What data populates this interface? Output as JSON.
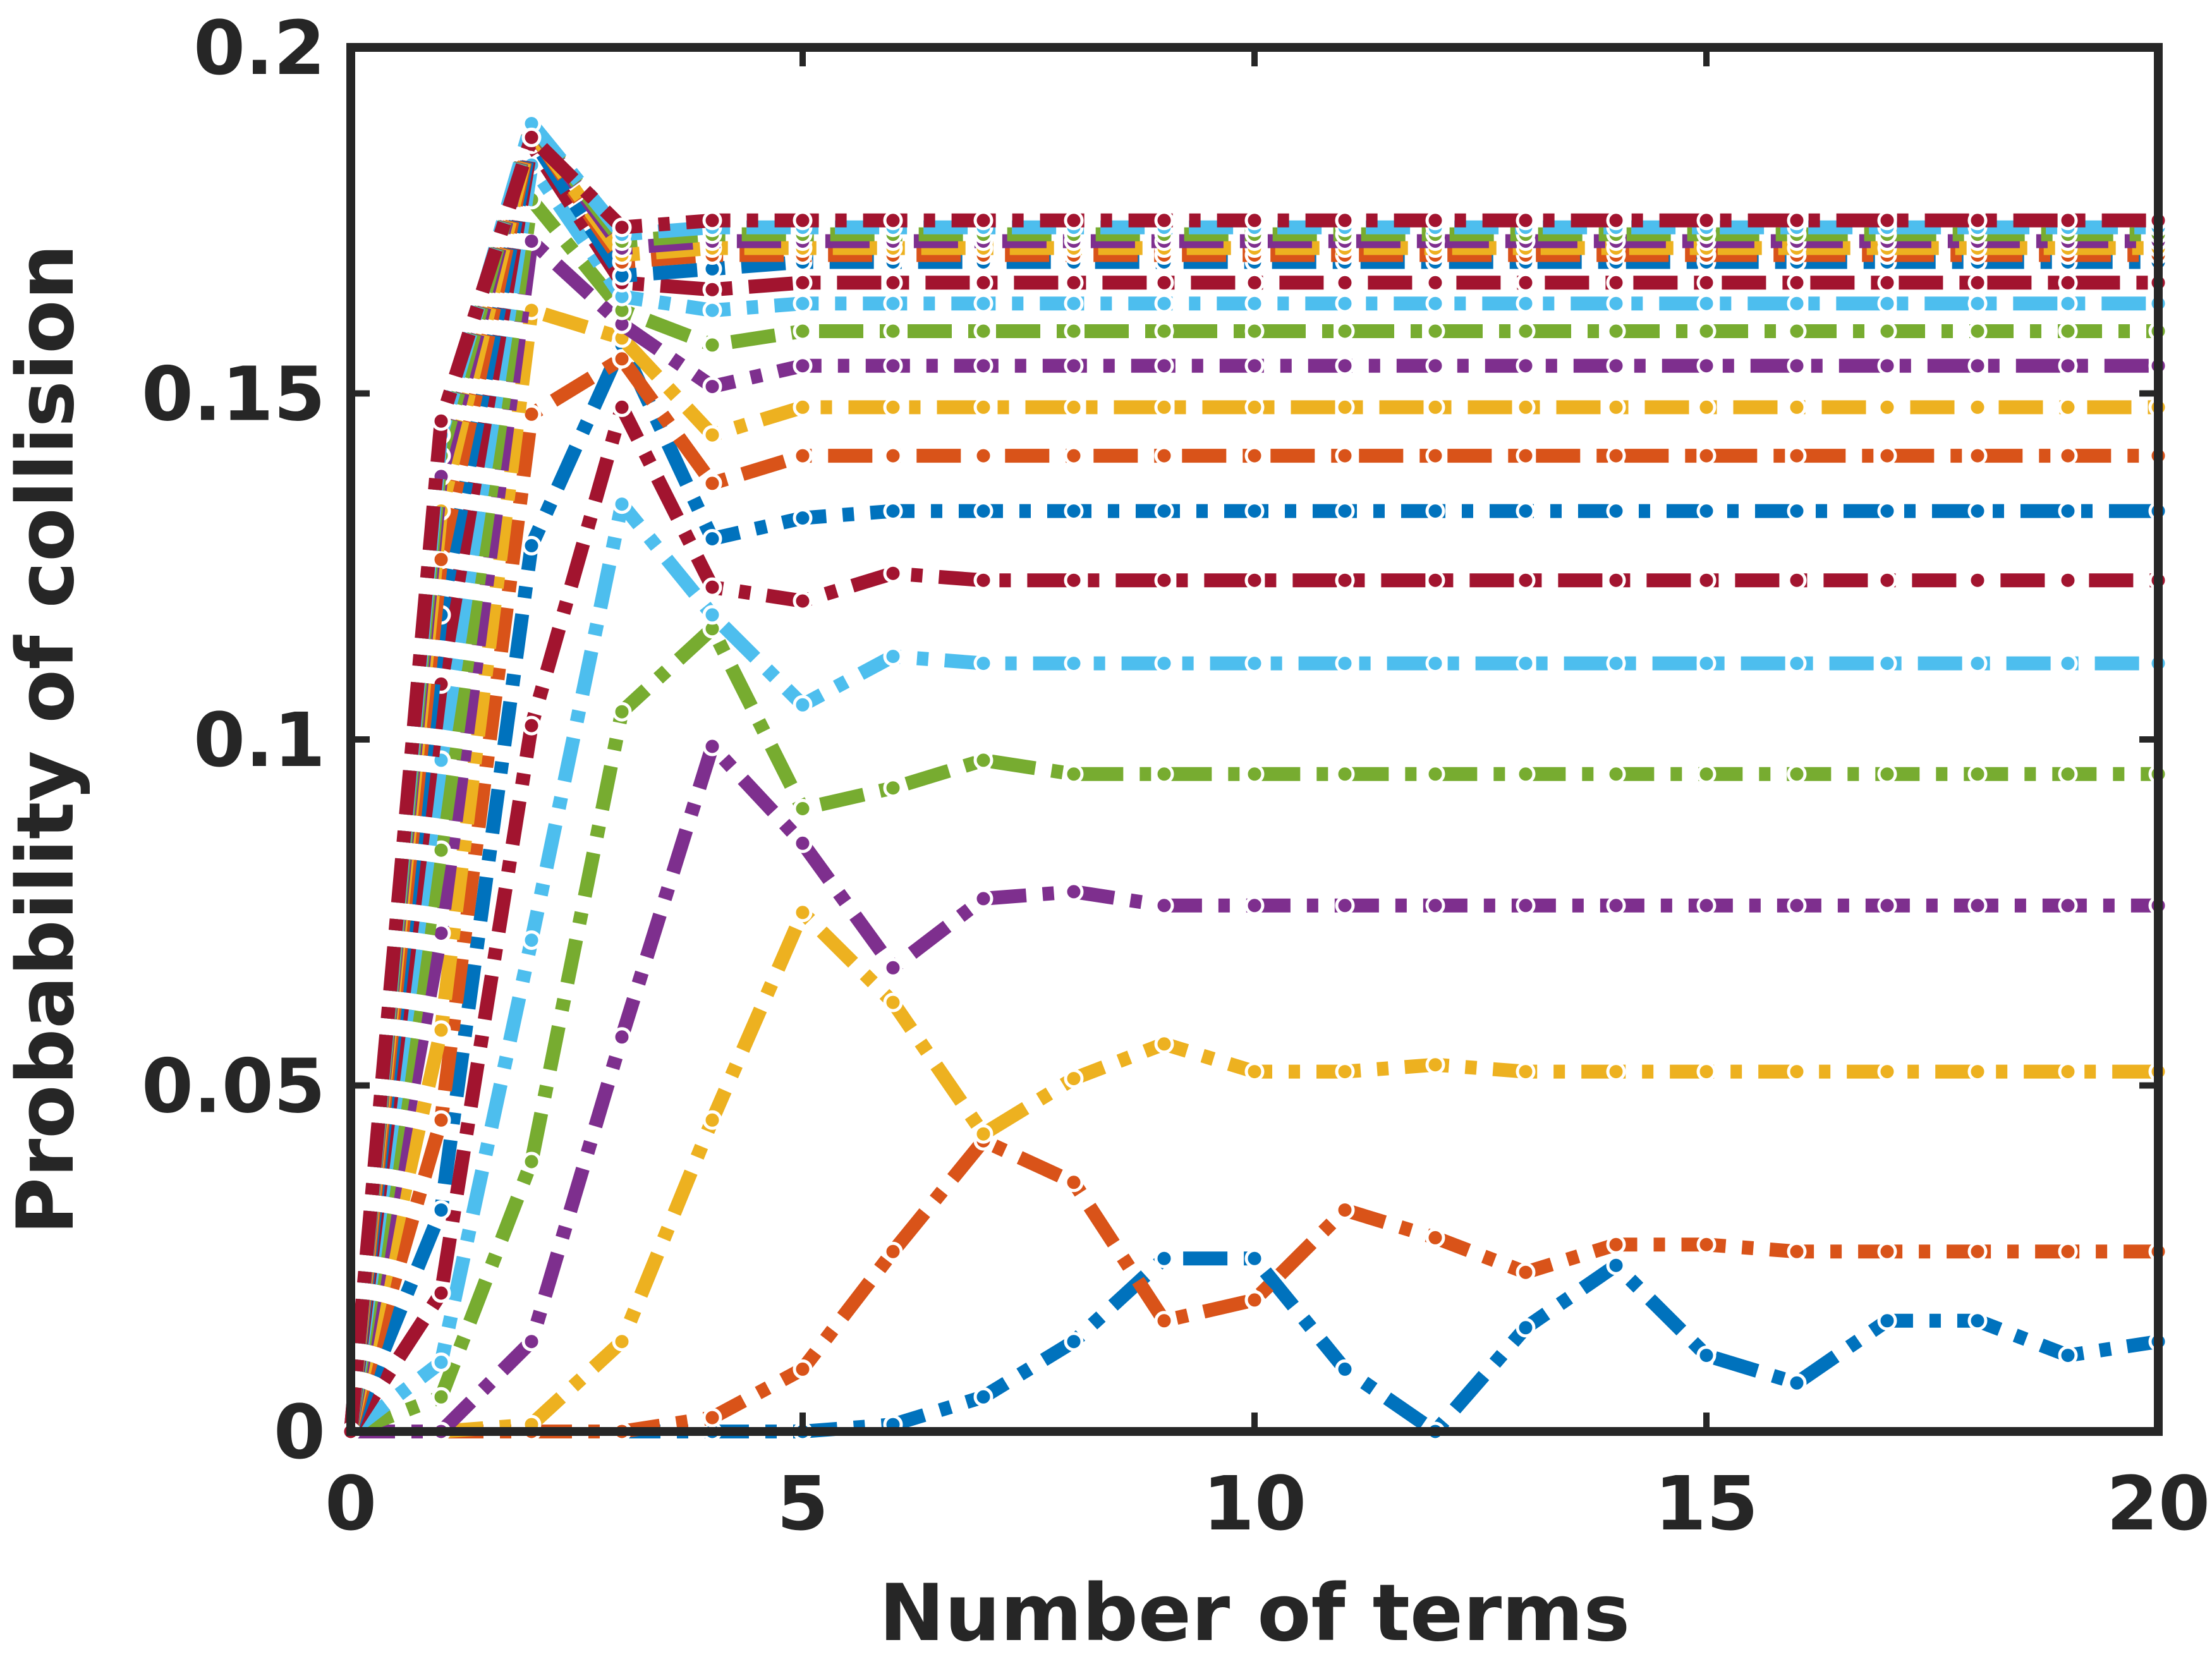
{
  "chart_data": {
    "type": "line",
    "xlabel": "Number of terms",
    "ylabel": "Probability of collision",
    "xlim": [
      0,
      20
    ],
    "ylim": [
      0,
      0.2
    ],
    "xticks": [
      0,
      5,
      10,
      15,
      20
    ],
    "xtick_labels": [
      "0",
      "5",
      "10",
      "15",
      "20"
    ],
    "yticks": [
      0,
      0.05,
      0.1,
      0.15,
      0.2
    ],
    "ytick_labels": [
      "0",
      "0.05",
      "0.1",
      "0.15",
      "0.2"
    ],
    "grid": false,
    "legend": "none",
    "colors": [
      "#0072BD",
      "#D95319",
      "#EDB120",
      "#7E2F8E",
      "#77AC30",
      "#4DBEEE",
      "#A2142F"
    ],
    "x": [
      0,
      1,
      2,
      3,
      4,
      5,
      6,
      7,
      8,
      9,
      10,
      11,
      12,
      13,
      14,
      15,
      16,
      17,
      18,
      19,
      20
    ],
    "series": [
      {
        "values": [
          0,
          0,
          0,
          0,
          0,
          0,
          0.001,
          0.005,
          0.013,
          0.025,
          0.025,
          0.009,
          0,
          0.015,
          0.024,
          0.011,
          0.007,
          0.016,
          0.016,
          0.011,
          0.013
        ]
      },
      {
        "values": [
          0,
          0,
          0,
          0,
          0.002,
          0.009,
          0.026,
          0.042,
          0.036,
          0.016,
          0.019,
          0.032,
          0.028,
          0.023,
          0.027,
          0.027,
          0.026,
          0.026,
          0.026,
          0.026,
          0.026
        ]
      },
      {
        "values": [
          0,
          0,
          0.001,
          0.013,
          0.045,
          0.075,
          0.062,
          0.043,
          0.051,
          0.056,
          0.052,
          0.052,
          0.053,
          0.052,
          0.052,
          0.052,
          0.052,
          0.052,
          0.052,
          0.052,
          0.052
        ]
      },
      {
        "values": [
          0,
          0,
          0.013,
          0.057,
          0.099,
          0.085,
          0.067,
          0.077,
          0.078,
          0.076,
          0.076,
          0.076,
          0.076,
          0.076,
          0.076,
          0.076,
          0.076,
          0.076,
          0.076,
          0.076,
          0.076
        ]
      },
      {
        "values": [
          0,
          0.005,
          0.039,
          0.104,
          0.116,
          0.09,
          0.093,
          0.097,
          0.095,
          0.095,
          0.095,
          0.095,
          0.095,
          0.095,
          0.095,
          0.095,
          0.095,
          0.095,
          0.095,
          0.095,
          0.095
        ]
      },
      {
        "values": [
          0,
          0.01,
          0.071,
          0.134,
          0.118,
          0.105,
          0.112,
          0.111,
          0.111,
          0.111,
          0.111,
          0.111,
          0.111,
          0.111,
          0.111,
          0.111,
          0.111,
          0.111,
          0.111,
          0.111,
          0.111
        ]
      },
      {
        "values": [
          0,
          0.02,
          0.102,
          0.148,
          0.122,
          0.12,
          0.124,
          0.123,
          0.123,
          0.123,
          0.123,
          0.123,
          0.123,
          0.123,
          0.123,
          0.123,
          0.123,
          0.123,
          0.123,
          0.123,
          0.123
        ]
      },
      {
        "values": [
          0,
          0.032,
          0.128,
          0.157,
          0.129,
          0.132,
          0.133,
          0.133,
          0.133,
          0.133,
          0.133,
          0.133,
          0.133,
          0.133,
          0.133,
          0.133,
          0.133,
          0.133,
          0.133,
          0.133,
          0.133
        ]
      },
      {
        "values": [
          0,
          0.045,
          0.147,
          0.155,
          0.137,
          0.141,
          0.141,
          0.141,
          0.141,
          0.141,
          0.141,
          0.141,
          0.141,
          0.141,
          0.141,
          0.141,
          0.141,
          0.141,
          0.141,
          0.141,
          0.141
        ]
      },
      {
        "values": [
          0,
          0.058,
          0.162,
          0.158,
          0.144,
          0.148,
          0.148,
          0.148,
          0.148,
          0.148,
          0.148,
          0.148,
          0.148,
          0.148,
          0.148,
          0.148,
          0.148,
          0.148,
          0.148,
          0.148,
          0.148
        ]
      },
      {
        "values": [
          0,
          0.072,
          0.172,
          0.16,
          0.151,
          0.154,
          0.154,
          0.154,
          0.154,
          0.154,
          0.154,
          0.154,
          0.154,
          0.154,
          0.154,
          0.154,
          0.154,
          0.154,
          0.154,
          0.154,
          0.154
        ]
      },
      {
        "values": [
          0,
          0.084,
          0.178,
          0.162,
          0.157,
          0.159,
          0.159,
          0.159,
          0.159,
          0.159,
          0.159,
          0.159,
          0.159,
          0.159,
          0.159,
          0.159,
          0.159,
          0.159,
          0.159,
          0.159,
          0.159
        ]
      },
      {
        "values": [
          0,
          0.097,
          0.183,
          0.164,
          0.162,
          0.163,
          0.163,
          0.163,
          0.163,
          0.163,
          0.163,
          0.163,
          0.163,
          0.163,
          0.163,
          0.163,
          0.163,
          0.163,
          0.163,
          0.163,
          0.163
        ]
      },
      {
        "values": [
          0,
          0.108,
          0.186,
          0.166,
          0.165,
          0.166,
          0.166,
          0.166,
          0.166,
          0.166,
          0.166,
          0.166,
          0.166,
          0.166,
          0.166,
          0.166,
          0.166,
          0.166,
          0.166,
          0.166,
          0.166
        ]
      },
      {
        "values": [
          0,
          0.118,
          0.187,
          0.167,
          0.168,
          0.169,
          0.169,
          0.169,
          0.169,
          0.169,
          0.169,
          0.169,
          0.169,
          0.169,
          0.169,
          0.169,
          0.169,
          0.169,
          0.169,
          0.169,
          0.169
        ]
      },
      {
        "values": [
          0,
          0.126,
          0.188,
          0.169,
          0.17,
          0.17,
          0.17,
          0.17,
          0.17,
          0.17,
          0.17,
          0.17,
          0.17,
          0.17,
          0.17,
          0.17,
          0.17,
          0.17,
          0.17,
          0.17,
          0.17
        ]
      },
      {
        "values": [
          0,
          0.133,
          0.188,
          0.17,
          0.171,
          0.171,
          0.171,
          0.171,
          0.171,
          0.171,
          0.171,
          0.171,
          0.171,
          0.171,
          0.171,
          0.171,
          0.171,
          0.171,
          0.171,
          0.171,
          0.171
        ]
      },
      {
        "values": [
          0,
          0.138,
          0.189,
          0.171,
          0.172,
          0.172,
          0.172,
          0.172,
          0.172,
          0.172,
          0.172,
          0.172,
          0.172,
          0.172,
          0.172,
          0.172,
          0.172,
          0.172,
          0.172,
          0.172,
          0.172
        ]
      },
      {
        "values": [
          0,
          0.141,
          0.189,
          0.172,
          0.173,
          0.173,
          0.173,
          0.173,
          0.173,
          0.173,
          0.173,
          0.173,
          0.173,
          0.173,
          0.173,
          0.173,
          0.173,
          0.173,
          0.173,
          0.173,
          0.173
        ]
      },
      {
        "values": [
          0,
          0.144,
          0.189,
          0.173,
          0.174,
          0.174,
          0.174,
          0.174,
          0.174,
          0.174,
          0.174,
          0.174,
          0.174,
          0.174,
          0.174,
          0.174,
          0.174,
          0.174,
          0.174,
          0.174,
          0.174
        ]
      },
      {
        "values": [
          0,
          0.146,
          0.187,
          0.174,
          0.175,
          0.175,
          0.175,
          0.175,
          0.175,
          0.175,
          0.175,
          0.175,
          0.175,
          0.175,
          0.175,
          0.175,
          0.175,
          0.175,
          0.175,
          0.175,
          0.175
        ]
      }
    ]
  }
}
